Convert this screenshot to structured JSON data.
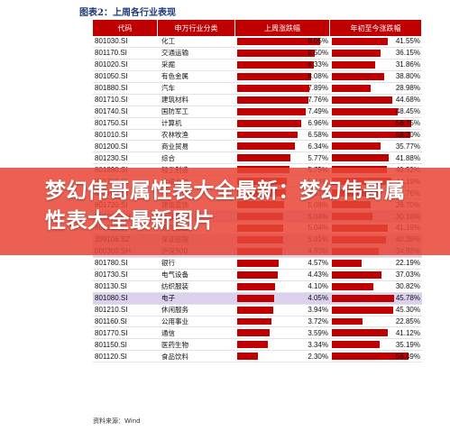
{
  "title": "图表2：上周各行业表现",
  "headers": [
    "代码",
    "申万行业分类",
    "上周涨跌幅",
    "年初至今涨跌幅"
  ],
  "rows": [
    {
      "code": "801030.SI",
      "name": "化工",
      "week": "9.05%",
      "ytd": "41.55%",
      "week_value": 9.05,
      "ytd_value": 41.55,
      "highlight": false
    },
    {
      "code": "801170.SI",
      "name": "交通运输",
      "week": "8.50%",
      "ytd": "36.15%",
      "week_value": 8.5,
      "ytd_value": 36.15,
      "highlight": false
    },
    {
      "code": "801020.SI",
      "name": "采掘",
      "week": "8.33%",
      "ytd": "31.86%",
      "week_value": 8.33,
      "ytd_value": 31.86,
      "highlight": false
    },
    {
      "code": "801050.SI",
      "name": "有色金属",
      "week": "8.08%",
      "ytd": "38.80%",
      "week_value": 8.08,
      "ytd_value": 38.8,
      "highlight": false
    },
    {
      "code": "801880.SI",
      "name": "汽车",
      "week": "7.89%",
      "ytd": "28.98%",
      "week_value": 7.89,
      "ytd_value": 28.98,
      "highlight": false
    },
    {
      "code": "801710.SI",
      "name": "建筑材料",
      "week": "7.76%",
      "ytd": "44.68%",
      "week_value": 7.76,
      "ytd_value": 44.68,
      "highlight": false
    },
    {
      "code": "801740.SI",
      "name": "国防军工",
      "week": "7.49%",
      "ytd": "48.45%",
      "week_value": 7.49,
      "ytd_value": 48.45,
      "highlight": false
    },
    {
      "code": "801750.SI",
      "name": "计算机",
      "week": "6.96%",
      "ytd": "58.75%",
      "week_value": 6.96,
      "ytd_value": 58.75,
      "highlight": false
    },
    {
      "code": "801010.SI",
      "name": "农林牧渔",
      "week": "6.58%",
      "ytd": "58.20%",
      "week_value": 6.58,
      "ytd_value": 58.2,
      "highlight": false
    },
    {
      "code": "801200.SI",
      "name": "商业贸易",
      "week": "6.34%",
      "ytd": "35.77%",
      "week_value": 6.34,
      "ytd_value": 35.77,
      "highlight": false
    },
    {
      "code": "801230.SI",
      "name": "综合",
      "week": "5.77%",
      "ytd": "41.88%",
      "week_value": 5.77,
      "ytd_value": 41.88,
      "highlight": false
    },
    {
      "code": "801890.SI",
      "name": "轻工制造",
      "week": "5.75%",
      "ytd": "40.52%",
      "week_value": 5.75,
      "ytd_value": 40.52,
      "highlight": false
    },
    {
      "code": "801790.SI",
      "name": "非银金融",
      "week": "5.44%",
      "ytd": "44.19%",
      "week_value": 5.44,
      "ytd_value": 44.19,
      "highlight": false
    },
    {
      "code": "801780.SI",
      "name": "",
      "week": "5.33%",
      "ytd": "34.76%",
      "week_value": 5.33,
      "ytd_value": 34.76,
      "highlight": false
    },
    {
      "code": "801720.SI",
      "name": "建筑装饰",
      "week": "5.08%",
      "ytd": "28.70%",
      "week_value": 5.08,
      "ytd_value": 28.7,
      "highlight": false
    },
    {
      "code": "000001.SH",
      "name": "上证综指",
      "week": "5.04%",
      "ytd": "30.18%",
      "week_value": 5.04,
      "ytd_value": 30.18,
      "highlight": true
    },
    {
      "code": "801110.SI",
      "name": "家用电器",
      "week": "5.04%",
      "ytd": "41.19%",
      "week_value": 5.04,
      "ytd_value": 41.19,
      "highlight": false
    },
    {
      "code": "399106.SZ",
      "name": "深证综指",
      "week": "5.01%",
      "ytd": "40.39%",
      "week_value": 5.01,
      "ytd_value": 40.39,
      "highlight": true
    },
    {
      "code": "000300.SH",
      "name": "沪深300",
      "week": "4.90%",
      "ytd": "34.93%",
      "week_value": 4.9,
      "ytd_value": 34.93,
      "highlight": true
    },
    {
      "code": "801780.SI",
      "name": "银行",
      "week": "4.57%",
      "ytd": "22.19%",
      "week_value": 4.57,
      "ytd_value": 22.19,
      "highlight": false
    },
    {
      "code": "801730.SI",
      "name": "电气设备",
      "week": "4.43%",
      "ytd": "37.03%",
      "week_value": 4.43,
      "ytd_value": 37.03,
      "highlight": false
    },
    {
      "code": "801130.SI",
      "name": "纺织服装",
      "week": "4.10%",
      "ytd": "30.82%",
      "week_value": 4.1,
      "ytd_value": 30.82,
      "highlight": false
    },
    {
      "code": "801080.SI",
      "name": "电子",
      "week": "4.05%",
      "ytd": "45.78%",
      "week_value": 4.05,
      "ytd_value": 45.78,
      "highlight": true
    },
    {
      "code": "801210.SI",
      "name": "休闲服务",
      "week": "3.94%",
      "ytd": "45.30%",
      "week_value": 3.94,
      "ytd_value": 45.3,
      "highlight": false
    },
    {
      "code": "801160.SI",
      "name": "公用事业",
      "week": "3.72%",
      "ytd": "22.85%",
      "week_value": 3.72,
      "ytd_value": 22.85,
      "highlight": false
    },
    {
      "code": "801770.SI",
      "name": "通信",
      "week": "3.59%",
      "ytd": "41.12%",
      "week_value": 3.59,
      "ytd_value": 41.12,
      "highlight": false
    },
    {
      "code": "801150.SI",
      "name": "医药生物",
      "week": "3.34%",
      "ytd": "35.19%",
      "week_value": 3.34,
      "ytd_value": 35.19,
      "highlight": false
    },
    {
      "code": "801120.SI",
      "name": "食品饮料",
      "week": "2.30%",
      "ytd": "56.49%",
      "week_value": 2.3,
      "ytd_value": 56.49,
      "highlight": false
    }
  ],
  "source": "资料来源：Wind",
  "banner": "梦幻伟哥属性表大全最新：梦幻伟哥属性表大全最新图片",
  "colors": {
    "bar": "#c00000",
    "highlight": "#dcd0ef",
    "banner": "#e84637"
  }
}
